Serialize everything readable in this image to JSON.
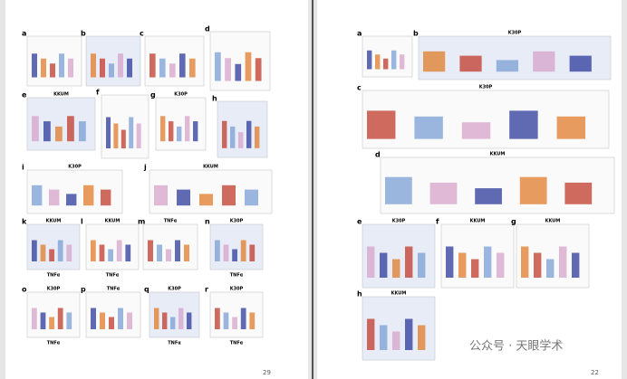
{
  "left_page": {
    "page_number": "29",
    "panels": [
      {
        "label": "a"
      },
      {
        "label": "b"
      },
      {
        "label": "c"
      },
      {
        "label": "d"
      },
      {
        "label": "e",
        "title": "KKUM"
      },
      {
        "label": "f"
      },
      {
        "label": "g",
        "title": "K30P"
      },
      {
        "label": "h"
      },
      {
        "label": "i",
        "title": "K30P"
      },
      {
        "label": "j",
        "title": "KKUM"
      },
      {
        "label": "k",
        "title": "KKUM",
        "xlabel": "TNFα"
      },
      {
        "label": "l",
        "title": "KKUM",
        "xlabel": "TNFα"
      },
      {
        "label": "m",
        "title": "TNFα"
      },
      {
        "label": "n",
        "title": "K30P",
        "xlabel": "TNFα"
      },
      {
        "label": "o",
        "title": "K30P",
        "xlabel": "TNFα"
      },
      {
        "label": "p",
        "title": "TNFα"
      },
      {
        "label": "q",
        "title": "K30P",
        "xlabel": "TNFα"
      },
      {
        "label": "r",
        "title": "K30P",
        "xlabel": "TNFα"
      }
    ]
  },
  "right_page": {
    "page_number": "22",
    "panels": [
      {
        "label": "a"
      },
      {
        "label": "b",
        "title": "K30P"
      },
      {
        "label": "c",
        "title": "K30P"
      },
      {
        "label": "d",
        "title": "KKUM"
      },
      {
        "label": "e",
        "title": "K30P"
      },
      {
        "label": "f",
        "title": "KKUM"
      },
      {
        "label": "g",
        "title": "KKUM"
      },
      {
        "label": "h",
        "title": "KKUM"
      }
    ]
  },
  "watermark": "公众号 · 天眼学术"
}
